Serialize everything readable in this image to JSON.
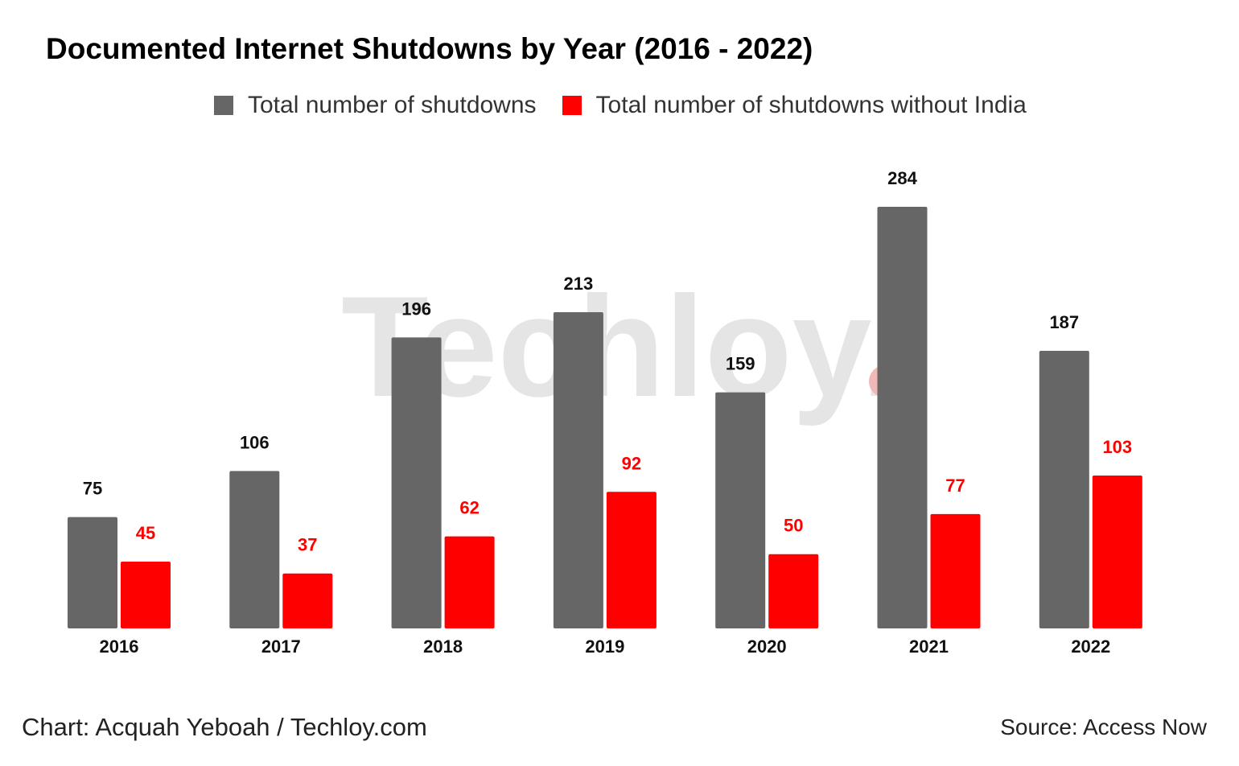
{
  "chart_data": {
    "type": "bar",
    "title": "Documented Internet Shutdowns by Year (2016 - 2022)",
    "categories": [
      "2016",
      "2017",
      "2018",
      "2019",
      "2020",
      "2021",
      "2022"
    ],
    "series": [
      {
        "name": "Total number of shutdowns",
        "color": "#666666",
        "label_color": "#111111",
        "values": [
          75,
          106,
          196,
          213,
          159,
          284,
          187
        ]
      },
      {
        "name": "Total number of shutdowns without India",
        "color": "#ff0000",
        "label_color": "#ff0000",
        "values": [
          45,
          37,
          62,
          92,
          50,
          77,
          103
        ]
      }
    ],
    "xlabel": "",
    "ylabel": "",
    "ylim": [
      0,
      284
    ],
    "grid": false,
    "legend": "top-center",
    "watermark": "Techloy."
  },
  "footer": {
    "credit": "Chart: Acquah Yeboah / Techloy.com",
    "source": "Source: Access Now"
  }
}
